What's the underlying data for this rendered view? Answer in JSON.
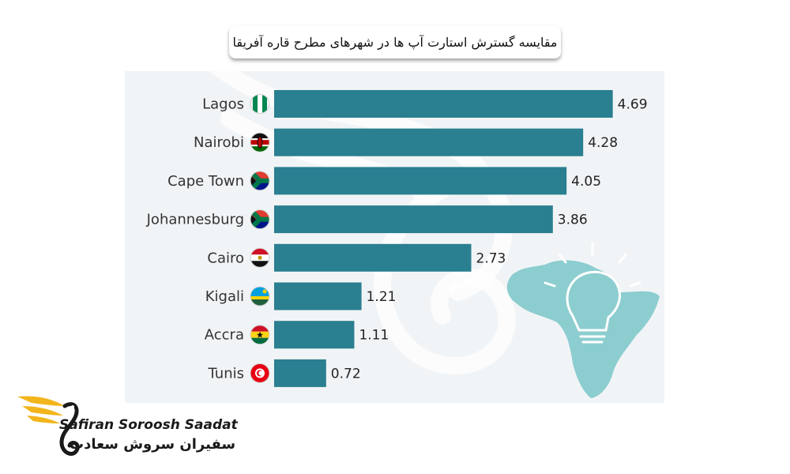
{
  "chart_data": {
    "type": "bar",
    "orientation": "horizontal",
    "title": "مقایسه گسترش استارت آپ ها در شهرهای مطرح قاره آفریقا",
    "categories": [
      "Lagos",
      "Nairobi",
      "Cape Town",
      "Johannesburg",
      "Cairo",
      "Kigali",
      "Accra",
      "Tunis"
    ],
    "values": [
      4.69,
      4.28,
      4.05,
      3.86,
      2.73,
      1.21,
      1.11,
      0.72
    ],
    "value_labels": [
      "4.69",
      "4.28",
      "4.05",
      "3.86",
      "2.73",
      "1.21",
      "1.11",
      "0.72"
    ],
    "flags": [
      "nigeria-flag-icon",
      "kenya-flag-icon",
      "south-africa-flag-icon",
      "south-africa-flag-icon",
      "egypt-flag-icon",
      "rwanda-flag-icon",
      "ghana-flag-icon",
      "tunisia-flag-icon"
    ],
    "bar_color": "#2a7f90",
    "grid": false
  },
  "branding": {
    "name_en": "Safiran Soroosh Saadat",
    "name_fa": "سفیران سروش سعادت",
    "accent_color": "#f2b51c"
  }
}
